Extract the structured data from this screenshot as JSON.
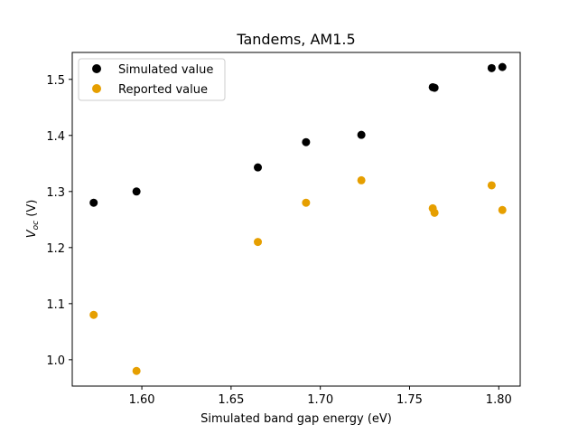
{
  "chart_data": {
    "type": "scatter",
    "title": "Tandems, AM1.5",
    "xlabel": "Simulated band gap energy (eV)",
    "ylabel_main": "V",
    "ylabel_sub": "oc",
    "ylabel_unit": " (V)",
    "xlim": [
      1.561,
      1.812
    ],
    "ylim": [
      0.953,
      1.548
    ],
    "xticks": [
      "1.60",
      "1.65",
      "1.70",
      "1.75",
      "1.80"
    ],
    "yticks": [
      "1.0",
      "1.1",
      "1.2",
      "1.3",
      "1.4",
      "1.5"
    ],
    "legend_placement": "upper-left",
    "series": [
      {
        "name": "Simulated value",
        "color": "#000000",
        "points": [
          {
            "x": 1.573,
            "y": 1.28
          },
          {
            "x": 1.597,
            "y": 1.3
          },
          {
            "x": 1.665,
            "y": 1.343
          },
          {
            "x": 1.692,
            "y": 1.388
          },
          {
            "x": 1.723,
            "y": 1.401
          },
          {
            "x": 1.763,
            "y": 1.486
          },
          {
            "x": 1.764,
            "y": 1.485
          },
          {
            "x": 1.796,
            "y": 1.52
          },
          {
            "x": 1.802,
            "y": 1.522
          }
        ]
      },
      {
        "name": "Reported value",
        "color": "#e69f00",
        "points": [
          {
            "x": 1.573,
            "y": 1.08
          },
          {
            "x": 1.597,
            "y": 0.98
          },
          {
            "x": 1.665,
            "y": 1.21
          },
          {
            "x": 1.692,
            "y": 1.28
          },
          {
            "x": 1.723,
            "y": 1.32
          },
          {
            "x": 1.763,
            "y": 1.27
          },
          {
            "x": 1.764,
            "y": 1.262
          },
          {
            "x": 1.796,
            "y": 1.311
          },
          {
            "x": 1.802,
            "y": 1.267
          }
        ]
      }
    ]
  }
}
